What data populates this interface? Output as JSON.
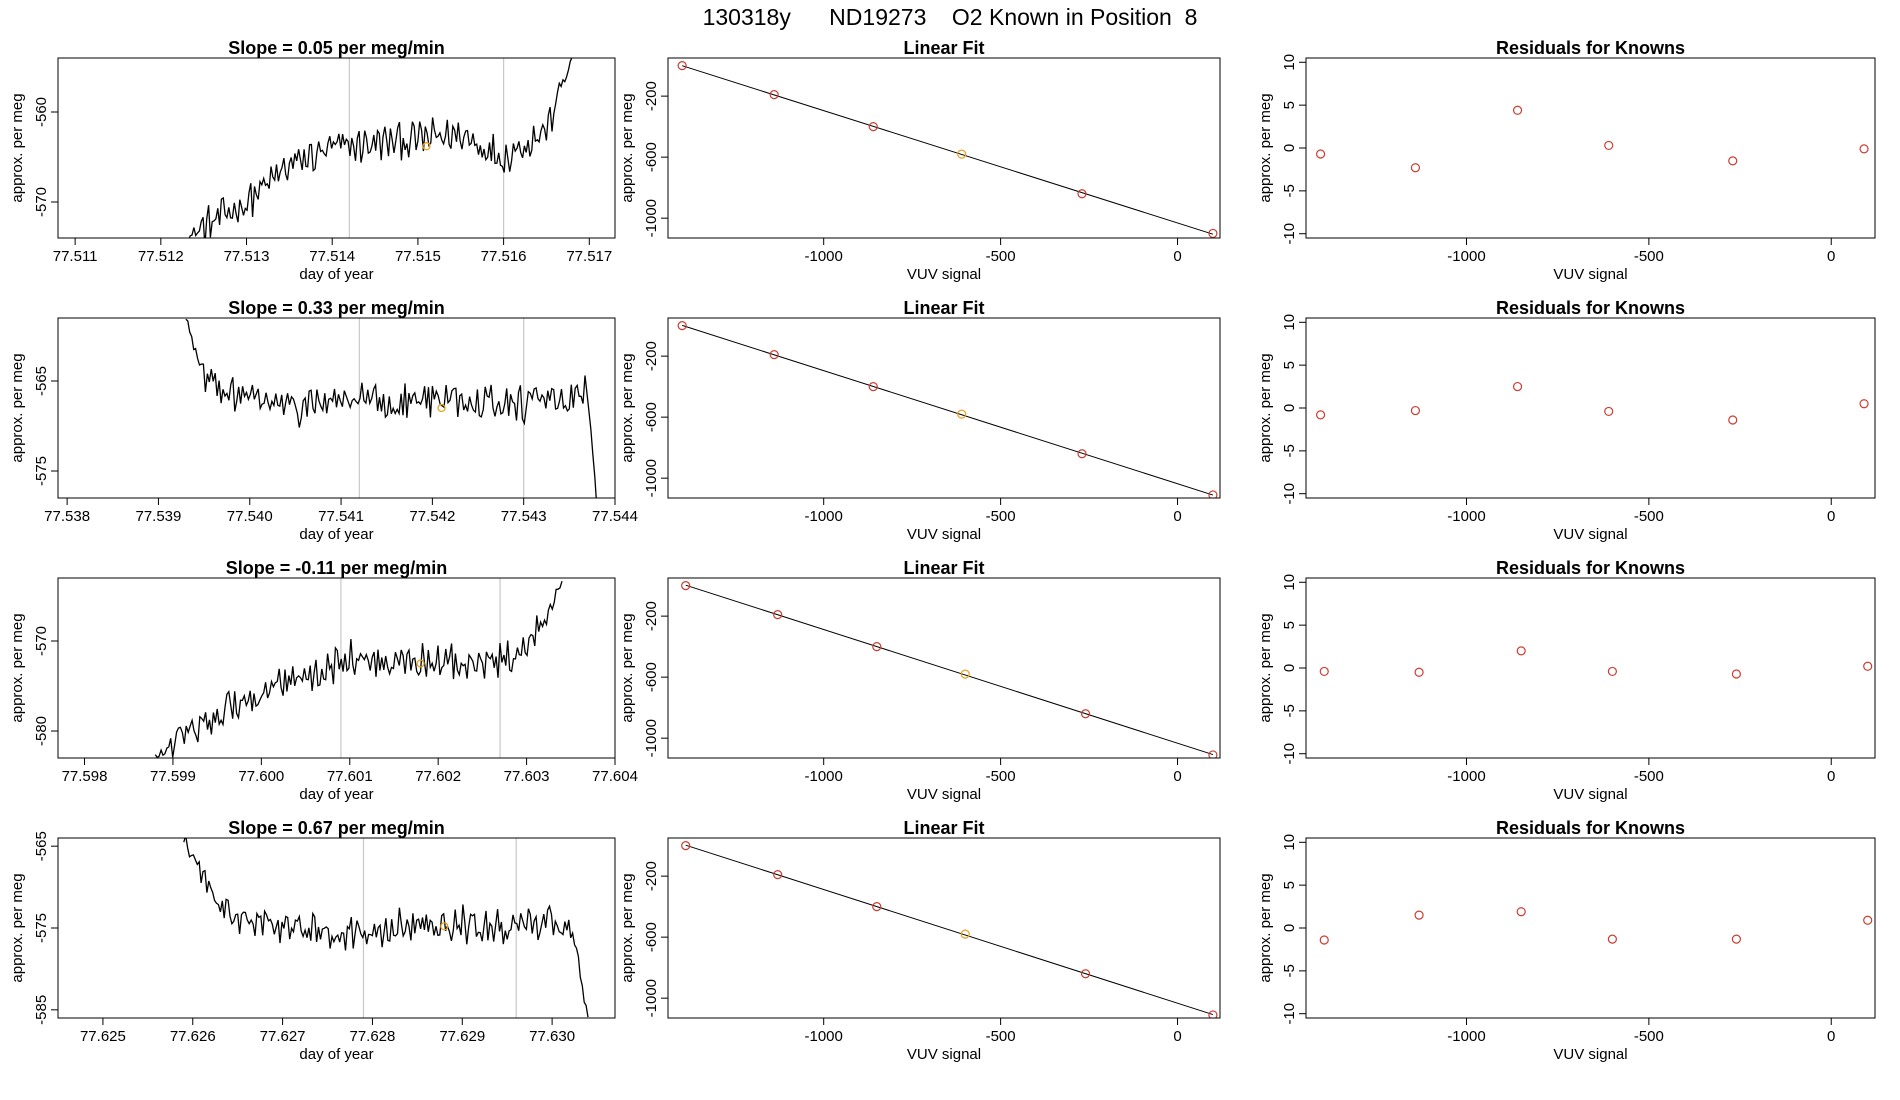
{
  "title": "130318y      ND19273    O2 Known in Position  8",
  "colors": {
    "line": "#000000",
    "point": "#cd3b30",
    "highlight": "#e8a020",
    "vline": "#c8c8c8",
    "fit": "#000000"
  },
  "chart_data": [
    {
      "type": "line",
      "panel": "timeseries",
      "row": 0,
      "title": "Slope =  0.05  per meg/min",
      "xlabel": "day of year",
      "ylabel": "approx. per meg",
      "xlim": [
        77.5108,
        77.5173
      ],
      "ylim": [
        -574,
        -554
      ],
      "xticks": [
        "77.511",
        "77.512",
        "77.513",
        "77.514",
        "77.515",
        "77.516",
        "77.517"
      ],
      "xtick_values": [
        77.511,
        77.512,
        77.513,
        77.514,
        77.515,
        77.516,
        77.517
      ],
      "yticks": [
        "-560",
        "-570"
      ],
      "ytick_values": [
        -560,
        -570
      ],
      "vlines": [
        77.5142,
        77.516
      ],
      "highlight_point": [
        77.5151,
        -563.8
      ],
      "start_x": 77.5123,
      "end_x": 77.5168,
      "series": [
        {
          "x": [
            77.5123,
            77.513,
            77.5135,
            77.514,
            77.5145,
            77.515,
            77.5155,
            77.516,
            77.5165,
            77.5168
          ],
          "y": [
            -574,
            -570,
            -566,
            -564,
            -563.5,
            -563,
            -562.5,
            -565,
            -562,
            -554
          ]
        }
      ]
    },
    {
      "type": "line",
      "panel": "timeseries",
      "row": 1,
      "title": "Slope =  0.33  per meg/min",
      "xlabel": "day of year",
      "ylabel": "approx. per meg",
      "xlim": [
        77.5379,
        77.544
      ],
      "ylim": [
        -578,
        -558
      ],
      "xticks": [
        "77.538",
        "77.539",
        "77.540",
        "77.541",
        "77.542",
        "77.543",
        "77.544"
      ],
      "xtick_values": [
        77.538,
        77.539,
        77.54,
        77.541,
        77.542,
        77.543,
        77.544
      ],
      "yticks": [
        "-565",
        "-575"
      ],
      "ytick_values": [
        -565,
        -575
      ],
      "vlines": [
        77.5412,
        77.543
      ],
      "highlight_point": [
        77.5421,
        -568
      ],
      "start_x": 77.5393,
      "end_x": 77.5438,
      "series": [
        {
          "x": [
            77.5393,
            77.5395,
            77.54,
            77.5405,
            77.541,
            77.5415,
            77.542,
            77.5425,
            77.543,
            77.5435,
            77.5437,
            77.5438
          ],
          "y": [
            -558,
            -565,
            -567,
            -568,
            -567,
            -567.5,
            -567,
            -567,
            -567.5,
            -567,
            -566,
            -578
          ]
        }
      ]
    },
    {
      "type": "line",
      "panel": "timeseries",
      "row": 2,
      "title": "Slope =  -0.11  per meg/min",
      "xlabel": "day of year",
      "ylabel": "approx. per meg",
      "xlim": [
        77.5977,
        77.604
      ],
      "ylim": [
        -583,
        -563
      ],
      "xticks": [
        "77.598",
        "77.599",
        "77.600",
        "77.601",
        "77.602",
        "77.603",
        "77.604"
      ],
      "xtick_values": [
        77.598,
        77.599,
        77.6,
        77.601,
        77.602,
        77.603,
        77.604
      ],
      "yticks": [
        "-570",
        "-580"
      ],
      "ytick_values": [
        -570,
        -580
      ],
      "vlines": [
        77.6009,
        77.6027
      ],
      "highlight_point": [
        77.6018,
        -572.5
      ],
      "start_x": 77.5988,
      "end_x": 77.6034,
      "series": [
        {
          "x": [
            77.5988,
            77.5995,
            77.6,
            77.6005,
            77.601,
            77.6015,
            77.602,
            77.6025,
            77.603,
            77.6034
          ],
          "y": [
            -583,
            -578,
            -576,
            -574,
            -572,
            -572.5,
            -572,
            -573,
            -571.5,
            -563
          ]
        }
      ]
    },
    {
      "type": "line",
      "panel": "timeseries",
      "row": 3,
      "title": "Slope =  0.67  per meg/min",
      "xlabel": "day of year",
      "ylabel": "approx. per meg",
      "xlim": [
        77.6245,
        77.6307
      ],
      "ylim": [
        -586,
        -564
      ],
      "xticks": [
        "77.625",
        "77.626",
        "77.627",
        "77.628",
        "77.629",
        "77.630"
      ],
      "xtick_values": [
        77.625,
        77.626,
        77.627,
        77.628,
        77.629,
        77.63
      ],
      "yticks": [
        "-565",
        "-575",
        "-585"
      ],
      "ytick_values": [
        -565,
        -575,
        -585
      ],
      "vlines": [
        77.6279,
        77.6296
      ],
      "highlight_point": [
        77.6288,
        -574.8
      ],
      "start_x": 77.6259,
      "end_x": 77.6304,
      "series": [
        {
          "x": [
            77.6259,
            77.6262,
            77.6265,
            77.627,
            77.6275,
            77.628,
            77.6285,
            77.629,
            77.6295,
            77.63,
            77.6302,
            77.6304
          ],
          "y": [
            -564,
            -571,
            -574,
            -575,
            -575.5,
            -575,
            -575,
            -574.5,
            -575,
            -574,
            -575,
            -586
          ]
        }
      ]
    },
    {
      "type": "scatter",
      "panel": "fit",
      "row": 0,
      "title": "Linear Fit",
      "xlabel": "VUV signal",
      "ylabel": "approx. per meg",
      "xlim": [
        -1440,
        120
      ],
      "ylim": [
        -1130,
        50
      ],
      "xticks": [
        "-1000",
        "-500",
        "0"
      ],
      "xtick_values": [
        -1000,
        -500,
        0
      ],
      "yticks": [
        "-200",
        "-600",
        "-1000"
      ],
      "ytick_values": [
        -200,
        -600,
        -1000
      ],
      "x": [
        -1400,
        -1140,
        -860,
        -610,
        -270,
        100
      ],
      "y": [
        0,
        -190,
        -400,
        -580,
        -840,
        -1100
      ],
      "highlight_index": 3
    },
    {
      "type": "scatter",
      "panel": "fit",
      "row": 1,
      "title": "Linear Fit",
      "xlabel": "VUV signal",
      "ylabel": "approx. per meg",
      "xlim": [
        -1440,
        120
      ],
      "ylim": [
        -1130,
        50
      ],
      "xticks": [
        "-1000",
        "-500",
        "0"
      ],
      "xtick_values": [
        -1000,
        -500,
        0
      ],
      "yticks": [
        "-200",
        "-600",
        "-1000"
      ],
      "ytick_values": [
        -200,
        -600,
        -1000
      ],
      "x": [
        -1400,
        -1140,
        -860,
        -610,
        -270,
        100
      ],
      "y": [
        0,
        -190,
        -400,
        -580,
        -840,
        -1110
      ],
      "highlight_index": 3
    },
    {
      "type": "scatter",
      "panel": "fit",
      "row": 2,
      "title": "Linear Fit",
      "xlabel": "VUV signal",
      "ylabel": "approx. per meg",
      "xlim": [
        -1440,
        120
      ],
      "ylim": [
        -1130,
        50
      ],
      "xticks": [
        "-1000",
        "-500",
        "0"
      ],
      "xtick_values": [
        -1000,
        -500,
        0
      ],
      "yticks": [
        "-200",
        "-600",
        "-1000"
      ],
      "ytick_values": [
        -200,
        -600,
        -1000
      ],
      "x": [
        -1390,
        -1130,
        -850,
        -600,
        -260,
        100
      ],
      "y": [
        0,
        -190,
        -400,
        -580,
        -840,
        -1110
      ],
      "highlight_index": 3
    },
    {
      "type": "scatter",
      "panel": "fit",
      "row": 3,
      "title": "Linear Fit",
      "xlabel": "VUV signal",
      "ylabel": "approx. per meg",
      "xlim": [
        -1440,
        120
      ],
      "ylim": [
        -1130,
        50
      ],
      "xticks": [
        "-1000",
        "-500",
        "0"
      ],
      "xtick_values": [
        -1000,
        -500,
        0
      ],
      "yticks": [
        "-200",
        "-600",
        "-1000"
      ],
      "ytick_values": [
        -200,
        -600,
        -1000
      ],
      "x": [
        -1390,
        -1130,
        -850,
        -600,
        -260,
        100
      ],
      "y": [
        0,
        -190,
        -400,
        -580,
        -840,
        -1110
      ],
      "highlight_index": 3
    },
    {
      "type": "scatter",
      "panel": "residuals",
      "row": 0,
      "title": "Residuals for Knowns",
      "xlabel": "VUV signal",
      "ylabel": "approx. per meg",
      "xlim": [
        -1440,
        120
      ],
      "ylim": [
        -10.5,
        10.5
      ],
      "xticks": [
        "-1000",
        "-500",
        "0"
      ],
      "xtick_values": [
        -1000,
        -500,
        0
      ],
      "yticks": [
        "-10",
        "-5",
        "0",
        "5",
        "10"
      ],
      "ytick_values": [
        -10,
        -5,
        0,
        5,
        10
      ],
      "x": [
        -1400,
        -1140,
        -860,
        -610,
        -270,
        90
      ],
      "y": [
        -0.7,
        -2.3,
        4.4,
        0.3,
        -1.5,
        -0.1
      ]
    },
    {
      "type": "scatter",
      "panel": "residuals",
      "row": 1,
      "title": "Residuals for Knowns",
      "xlabel": "VUV signal",
      "ylabel": "approx. per meg",
      "xlim": [
        -1440,
        120
      ],
      "ylim": [
        -10.5,
        10.5
      ],
      "xticks": [
        "-1000",
        "-500",
        "0"
      ],
      "xtick_values": [
        -1000,
        -500,
        0
      ],
      "yticks": [
        "-10",
        "-5",
        "0",
        "5",
        "10"
      ],
      "ytick_values": [
        -10,
        -5,
        0,
        5,
        10
      ],
      "x": [
        -1400,
        -1140,
        -860,
        -610,
        -270,
        90
      ],
      "y": [
        -0.8,
        -0.3,
        2.5,
        -0.4,
        -1.4,
        0.5
      ]
    },
    {
      "type": "scatter",
      "panel": "residuals",
      "row": 2,
      "title": "Residuals for Knowns",
      "xlabel": "VUV signal",
      "ylabel": "approx. per meg",
      "xlim": [
        -1440,
        120
      ],
      "ylim": [
        -10.5,
        10.5
      ],
      "xticks": [
        "-1000",
        "-500",
        "0"
      ],
      "xtick_values": [
        -1000,
        -500,
        0
      ],
      "yticks": [
        "-10",
        "-5",
        "0",
        "5",
        "10"
      ],
      "ytick_values": [
        -10,
        -5,
        0,
        5,
        10
      ],
      "x": [
        -1390,
        -1130,
        -850,
        -600,
        -260,
        100
      ],
      "y": [
        -0.4,
        -0.5,
        2.0,
        -0.4,
        -0.7,
        0.2
      ]
    },
    {
      "type": "scatter",
      "panel": "residuals",
      "row": 3,
      "title": "Residuals for Knowns",
      "xlabel": "VUV signal",
      "ylabel": "approx. per meg",
      "xlim": [
        -1440,
        120
      ],
      "ylim": [
        -10.5,
        10.5
      ],
      "xticks": [
        "-1000",
        "-500",
        "0"
      ],
      "xtick_values": [
        -1000,
        -500,
        0
      ],
      "yticks": [
        "-10",
        "-5",
        "0",
        "5",
        "10"
      ],
      "ytick_values": [
        -10,
        -5,
        0,
        5,
        10
      ],
      "x": [
        -1390,
        -1130,
        -850,
        -600,
        -260,
        100
      ],
      "y": [
        -1.4,
        1.5,
        1.9,
        -1.3,
        -1.3,
        0.9
      ]
    }
  ]
}
